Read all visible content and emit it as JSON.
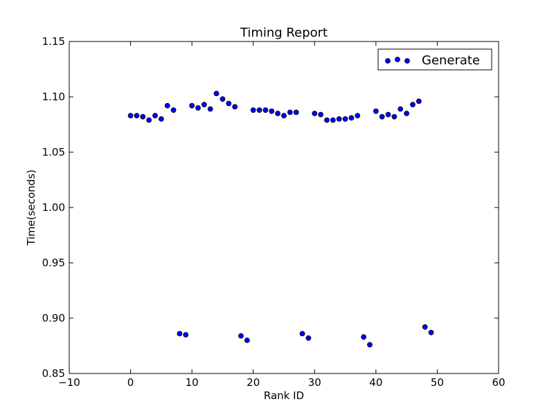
{
  "chart_data": {
    "type": "scatter",
    "title": "Timing Report",
    "xlabel": "Rank ID",
    "ylabel": "Time(seconds)",
    "xlim": [
      -10,
      60
    ],
    "ylim": [
      0.85,
      1.15
    ],
    "xticks": [
      "−10",
      "0",
      "10",
      "20",
      "30",
      "40",
      "50",
      "60"
    ],
    "yticks": [
      "0.85",
      "0.90",
      "0.95",
      "1.00",
      "1.05",
      "1.10",
      "1.15"
    ],
    "grid": false,
    "legend_position": "top-right",
    "marker_color": "#0000ff",
    "marker_edge_color": "#000000",
    "series": [
      {
        "name": "Generate",
        "x": [
          0,
          1,
          2,
          3,
          4,
          5,
          6,
          7,
          8,
          9,
          10,
          11,
          12,
          13,
          14,
          15,
          16,
          17,
          18,
          19,
          20,
          21,
          22,
          23,
          24,
          25,
          26,
          27,
          28,
          29,
          30,
          31,
          32,
          33,
          34,
          35,
          36,
          37,
          38,
          39,
          40,
          41,
          42,
          43,
          44,
          45,
          46,
          47,
          48,
          49
        ],
        "y": [
          1.083,
          1.083,
          1.082,
          1.079,
          1.083,
          1.08,
          1.092,
          1.088,
          0.886,
          0.885,
          1.092,
          1.09,
          1.093,
          1.089,
          1.103,
          1.098,
          1.094,
          1.091,
          0.884,
          0.88,
          1.088,
          1.088,
          1.088,
          1.087,
          1.085,
          1.083,
          1.086,
          1.086,
          0.886,
          0.882,
          1.085,
          1.084,
          1.079,
          1.079,
          1.08,
          1.08,
          1.081,
          1.083,
          0.883,
          0.876,
          1.087,
          1.082,
          1.084,
          1.082,
          1.089,
          1.085,
          1.093,
          1.096,
          0.892,
          0.887
        ]
      }
    ]
  }
}
